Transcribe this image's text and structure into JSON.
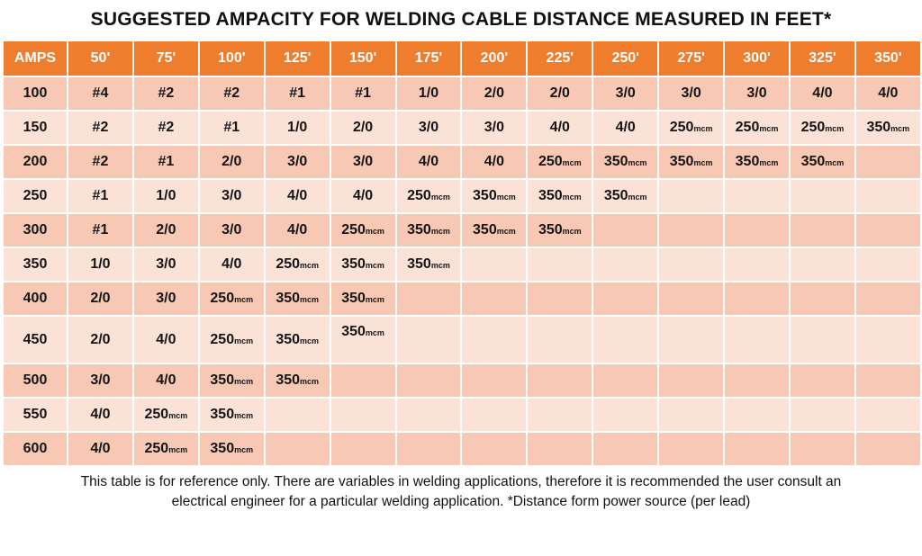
{
  "title": "SUGGESTED AMPACITY FOR WELDING CABLE DISTANCE MEASURED IN FEET*",
  "unit_suffix": "mcm",
  "headers": [
    "AMPS",
    "50'",
    "75'",
    "100'",
    "125'",
    "150'",
    "175'",
    "200'",
    "225'",
    "250'",
    "275'",
    "300'",
    "325'",
    "350'"
  ],
  "rows": [
    {
      "amps": "100",
      "cells": [
        "#4",
        "#2",
        "#2",
        "#1",
        "#1",
        "1/0",
        "2/0",
        "2/0",
        "3/0",
        "3/0",
        "3/0",
        "4/0",
        "4/0"
      ]
    },
    {
      "amps": "150",
      "cells": [
        "#2",
        "#2",
        "#1",
        "1/0",
        "2/0",
        "3/0",
        "3/0",
        "4/0",
        "4/0",
        "250",
        "250",
        "250",
        "350"
      ]
    },
    {
      "amps": "200",
      "cells": [
        "#2",
        "#1",
        "2/0",
        "3/0",
        "3/0",
        "4/0",
        "4/0",
        "250",
        "350",
        "350",
        "350",
        "350",
        ""
      ]
    },
    {
      "amps": "250",
      "cells": [
        "#1",
        "1/0",
        "3/0",
        "4/0",
        "4/0",
        "250",
        "350",
        "350",
        "350",
        "",
        "",
        "",
        ""
      ]
    },
    {
      "amps": "300",
      "cells": [
        "#1",
        "2/0",
        "3/0",
        "4/0",
        "250",
        "350",
        "350",
        "350",
        "",
        "",
        "",
        "",
        ""
      ]
    },
    {
      "amps": "350",
      "cells": [
        "1/0",
        "3/0",
        "4/0",
        "250",
        "350",
        "350",
        "",
        "",
        "",
        "",
        "",
        "",
        ""
      ]
    },
    {
      "amps": "400",
      "cells": [
        "2/0",
        "3/0",
        "250",
        "350",
        "350",
        "",
        "",
        "",
        "",
        "",
        "",
        "",
        ""
      ]
    },
    {
      "amps": "450",
      "cells": [
        "2/0",
        "4/0",
        "250",
        "350",
        "350",
        "",
        "",
        "",
        "",
        "",
        "",
        "",
        ""
      ]
    },
    {
      "amps": "500",
      "cells": [
        "3/0",
        "4/0",
        "350",
        "350",
        "",
        "",
        "",
        "",
        "",
        "",
        "",
        "",
        ""
      ]
    },
    {
      "amps": "550",
      "cells": [
        "4/0",
        "250",
        "350",
        "",
        "",
        "",
        "",
        "",
        "",
        "",
        "",
        "",
        ""
      ]
    },
    {
      "amps": "600",
      "cells": [
        "4/0",
        "250",
        "350",
        "",
        "",
        "",
        "",
        "",
        "",
        "",
        "",
        "",
        ""
      ]
    }
  ],
  "footer_line1": "This table is for reference only. There are variables in welding applications, therefore it is recommended the user consult an",
  "footer_line2": "electrical engineer for a particular welding application. *Distance form power source (per lead)"
}
